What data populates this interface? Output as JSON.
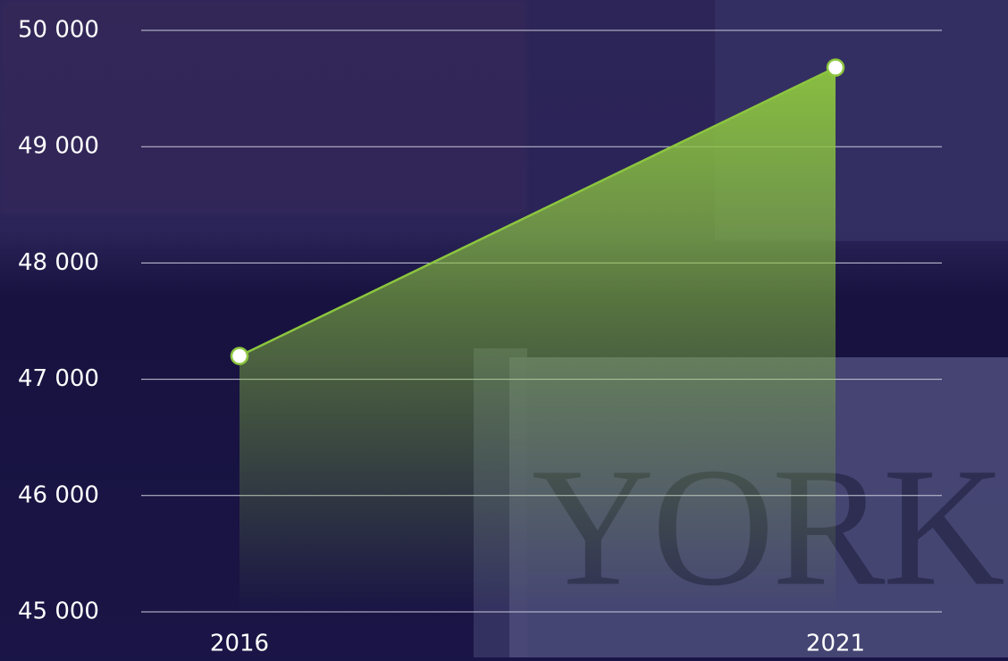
{
  "chart_data": {
    "type": "area",
    "categories": [
      "2016",
      "2021"
    ],
    "series": [
      {
        "name": null,
        "color": "#8dc63f",
        "values": [
          47200,
          49680
        ]
      }
    ],
    "ylim": [
      45000,
      50000
    ],
    "yticks": [
      {
        "value": 45000,
        "label": "45 000"
      },
      {
        "value": 46000,
        "label": "46 000"
      },
      {
        "value": 47000,
        "label": "47 000"
      },
      {
        "value": 48000,
        "label": "48 000"
      },
      {
        "value": 49000,
        "label": "49 000"
      },
      {
        "value": 50000,
        "label": "50 000"
      }
    ],
    "grid": true
  },
  "background_text": "YORK"
}
